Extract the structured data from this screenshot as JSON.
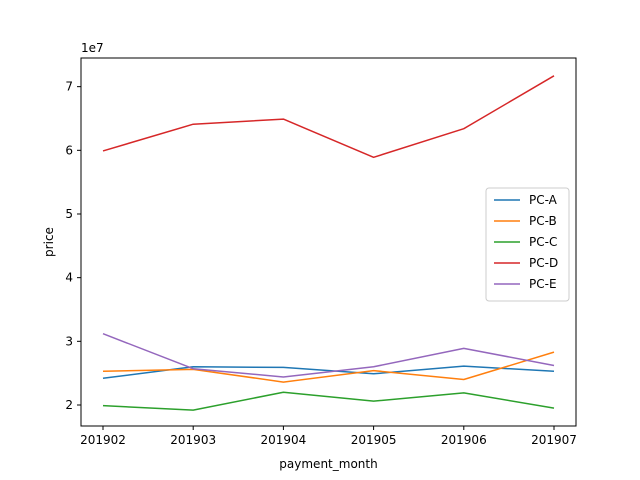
{
  "chart_data": {
    "type": "line",
    "title": "",
    "xlabel": "payment_month",
    "ylabel": "price",
    "y_offset_label": "1e7",
    "x": [
      "201902",
      "201903",
      "201904",
      "201905",
      "201906",
      "201907"
    ],
    "yticks": [
      "2",
      "3",
      "4",
      "5",
      "6",
      "7"
    ],
    "ylim": [
      16700000,
      74500000
    ],
    "legend_position": "center-right",
    "grid": false,
    "series": [
      {
        "name": "PC-A",
        "color": "#1f77b4",
        "values": [
          24200000,
          26000000,
          25900000,
          24900000,
          26100000,
          25300000
        ]
      },
      {
        "name": "PC-B",
        "color": "#ff7f0e",
        "values": [
          25300000,
          25600000,
          23600000,
          25400000,
          24000000,
          28300000
        ]
      },
      {
        "name": "PC-C",
        "color": "#2ca02c",
        "values": [
          19900000,
          19200000,
          22000000,
          20600000,
          21900000,
          19500000
        ]
      },
      {
        "name": "PC-D",
        "color": "#d62728",
        "values": [
          59900000,
          64100000,
          64900000,
          58900000,
          63400000,
          71700000
        ]
      },
      {
        "name": "PC-E",
        "color": "#9467bd",
        "values": [
          31200000,
          25700000,
          24400000,
          26000000,
          28900000,
          26200000
        ]
      }
    ]
  }
}
